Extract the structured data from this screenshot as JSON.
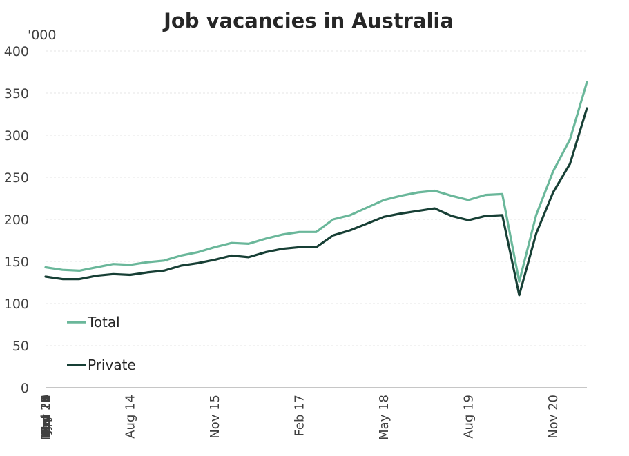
{
  "chart_data": {
    "type": "line",
    "title": "Job vacancies in Australia",
    "unit_label": "'000",
    "ylim": [
      0,
      400
    ],
    "yticks": [
      0,
      50,
      100,
      150,
      200,
      250,
      300,
      350,
      400
    ],
    "grid": true,
    "legend_position": "bottom-left",
    "x": [
      "May 13",
      "Aug 13",
      "Nov 13",
      "Feb 14",
      "May 14",
      "Aug 14",
      "Nov 14",
      "Feb 15",
      "May 15",
      "Aug 15",
      "Nov 15",
      "Feb 16",
      "May 16",
      "Aug 16",
      "Nov 16",
      "Feb 17",
      "May 17",
      "Aug 17",
      "Nov 17",
      "Feb 18",
      "May 18",
      "Aug 18",
      "Nov 18",
      "Feb 19",
      "May 19",
      "Aug 19",
      "Nov 19",
      "Feb 20",
      "May 20",
      "Aug 20",
      "Nov 20",
      "Feb 21",
      "May 21"
    ],
    "xtick_labels": [
      "May 13",
      "Oct 13",
      "Mar 14",
      "Aug 14",
      "Jan 15",
      "Jun 15",
      "Nov 15",
      "Apr 16",
      "Sep 16",
      "Feb 17",
      "Jul 17",
      "Dec 17",
      "May 18",
      "Oct 18",
      "Mar 19",
      "Aug 19",
      "Jan 20",
      "Jun 20",
      "Nov 20",
      "Apr 21"
    ],
    "series": [
      {
        "name": "Total",
        "color": "#6ab79a",
        "values": [
          143,
          140,
          139,
          143,
          147,
          146,
          149,
          151,
          157,
          161,
          167,
          172,
          171,
          177,
          182,
          185,
          185,
          200,
          205,
          214,
          223,
          228,
          232,
          234,
          228,
          223,
          229,
          230,
          126,
          205,
          257,
          295,
          363
        ]
      },
      {
        "name": "Private",
        "color": "#173f35",
        "values": [
          132,
          129,
          129,
          133,
          135,
          134,
          137,
          139,
          145,
          148,
          152,
          157,
          155,
          161,
          165,
          167,
          167,
          181,
          187,
          195,
          203,
          207,
          210,
          213,
          204,
          199,
          204,
          205,
          110,
          183,
          232,
          266,
          332
        ]
      }
    ]
  }
}
